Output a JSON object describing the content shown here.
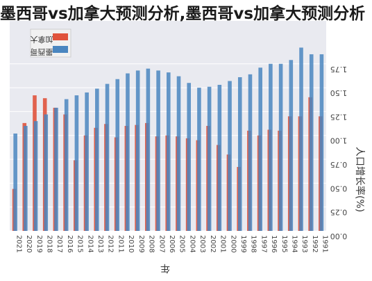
{
  "page_title": "墨西哥vs加拿大预测分析,墨西哥vs加拿大预测分析",
  "chart_data": {
    "type": "bar",
    "title": "",
    "xlabel": "年",
    "ylabel": "人口增长率(%)",
    "ylim": [
      0,
      2.2
    ],
    "y_ticks": [
      0.0,
      0.25,
      0.5,
      0.75,
      1.0,
      1.25,
      1.5,
      1.75
    ],
    "y_tick_labels": [
      "0.00",
      "0.25",
      "0.50",
      "0.75",
      "1.00",
      "1.25",
      "1.50",
      "1.75"
    ],
    "categories": [
      "1991",
      "1992",
      "1993",
      "1994",
      "1995",
      "1996",
      "1997",
      "1998",
      "1999",
      "2000",
      "2001",
      "2002",
      "2003",
      "2004",
      "2005",
      "2006",
      "2007",
      "2008",
      "2009",
      "2010",
      "2011",
      "2012",
      "2013",
      "2014",
      "2015",
      "2016",
      "2017",
      "2018",
      "2019",
      "2020",
      "2021"
    ],
    "series": [
      {
        "name": "加拿大",
        "color": "#e0533c",
        "values": [
          1.2,
          1.4,
          1.2,
          1.2,
          1.05,
          1.06,
          1.0,
          1.05,
          0.67,
          0.8,
          0.9,
          1.1,
          0.95,
          0.97,
          0.99,
          1.0,
          0.99,
          1.13,
          1.11,
          1.1,
          0.98,
          1.12,
          1.08,
          1.0,
          0.74,
          1.22,
          1.29,
          1.39,
          1.42,
          1.13,
          0.44
        ]
      },
      {
        "name": "墨西哥",
        "color": "#4a86c0",
        "values": [
          1.85,
          1.85,
          1.92,
          1.79,
          1.75,
          1.75,
          1.71,
          1.64,
          1.61,
          1.57,
          1.53,
          1.51,
          1.5,
          1.55,
          1.62,
          1.66,
          1.68,
          1.7,
          1.68,
          1.65,
          1.59,
          1.54,
          1.49,
          1.45,
          1.42,
          1.38,
          1.29,
          1.22,
          1.15,
          1.1,
          1.02
        ]
      }
    ],
    "grid": true,
    "legend_position": "top-left"
  }
}
